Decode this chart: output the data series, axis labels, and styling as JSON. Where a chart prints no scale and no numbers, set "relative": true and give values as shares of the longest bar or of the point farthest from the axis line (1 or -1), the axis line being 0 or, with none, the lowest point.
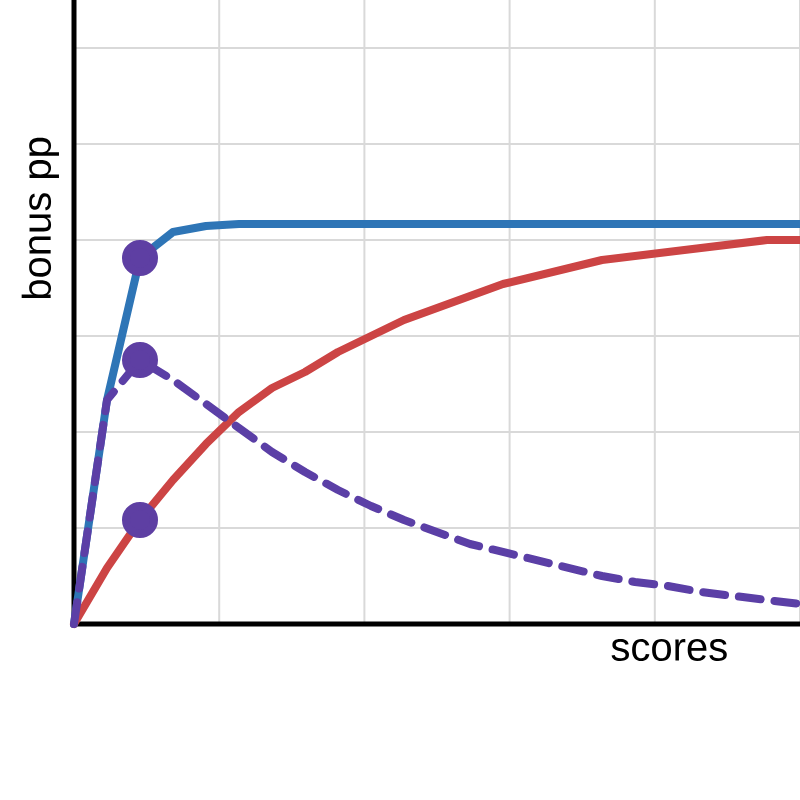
{
  "chart_data": {
    "type": "line",
    "xlabel": "scores",
    "ylabel": "bonus pp",
    "relative": true,
    "grid": true,
    "marker": "none",
    "categories": [
      null,
      null,
      null,
      null,
      null,
      null,
      null,
      null,
      null,
      null,
      null,
      null,
      null,
      null,
      null,
      null,
      null,
      null,
      null,
      null,
      null,
      null,
      null
    ],
    "series": [
      {
        "color": "#2e75b6",
        "line_style": "solid",
        "values": [
          0,
          0.56,
          0.915,
          0.98,
          0.995,
          1,
          1,
          1,
          1,
          1,
          1,
          1,
          1,
          1,
          1,
          1,
          1,
          1,
          1,
          1,
          1,
          1,
          1
        ]
      },
      {
        "color": "#cc4444",
        "line_style": "solid",
        "values": [
          0,
          0.14,
          0.26,
          0.36,
          0.45,
          0.53,
          0.59,
          0.63,
          0.68,
          0.72,
          0.76,
          0.79,
          0.82,
          0.85,
          0.87,
          0.89,
          0.91,
          0.92,
          0.93,
          0.94,
          0.95,
          0.96,
          0.96
        ]
      },
      {
        "color": "#5b3fa6",
        "line_style": "dashed",
        "values": [
          0,
          0.56,
          0.66,
          0.61,
          0.55,
          0.49,
          0.43,
          0.38,
          0.335,
          0.295,
          0.26,
          0.23,
          0.2,
          0.18,
          0.16,
          0.14,
          0.12,
          0.105,
          0.095,
          0.08,
          0.07,
          0.06,
          0.05
        ]
      },
      {
        "marker": "circle",
        "color": "#5e3fa3",
        "values": [
          null,
          null,
          0.915,
          null,
          null,
          null,
          null,
          null,
          null,
          null,
          null,
          null,
          null,
          null,
          null,
          null,
          null,
          null,
          null,
          null,
          null,
          null,
          null
        ]
      },
      {
        "marker": "circle",
        "color": "#5e3fa3",
        "values": [
          null,
          null,
          0.66,
          null,
          null,
          null,
          null,
          null,
          null,
          null,
          null,
          null,
          null,
          null,
          null,
          null,
          null,
          null,
          null,
          null,
          null,
          null,
          null
        ]
      },
      {
        "marker": "circle",
        "color": "#5e3fa3",
        "values": [
          null,
          null,
          0.26,
          null,
          null,
          null,
          null,
          null,
          null,
          null,
          null,
          null,
          null,
          null,
          null,
          null,
          null,
          null,
          null,
          null,
          null,
          null,
          null
        ]
      }
    ]
  }
}
